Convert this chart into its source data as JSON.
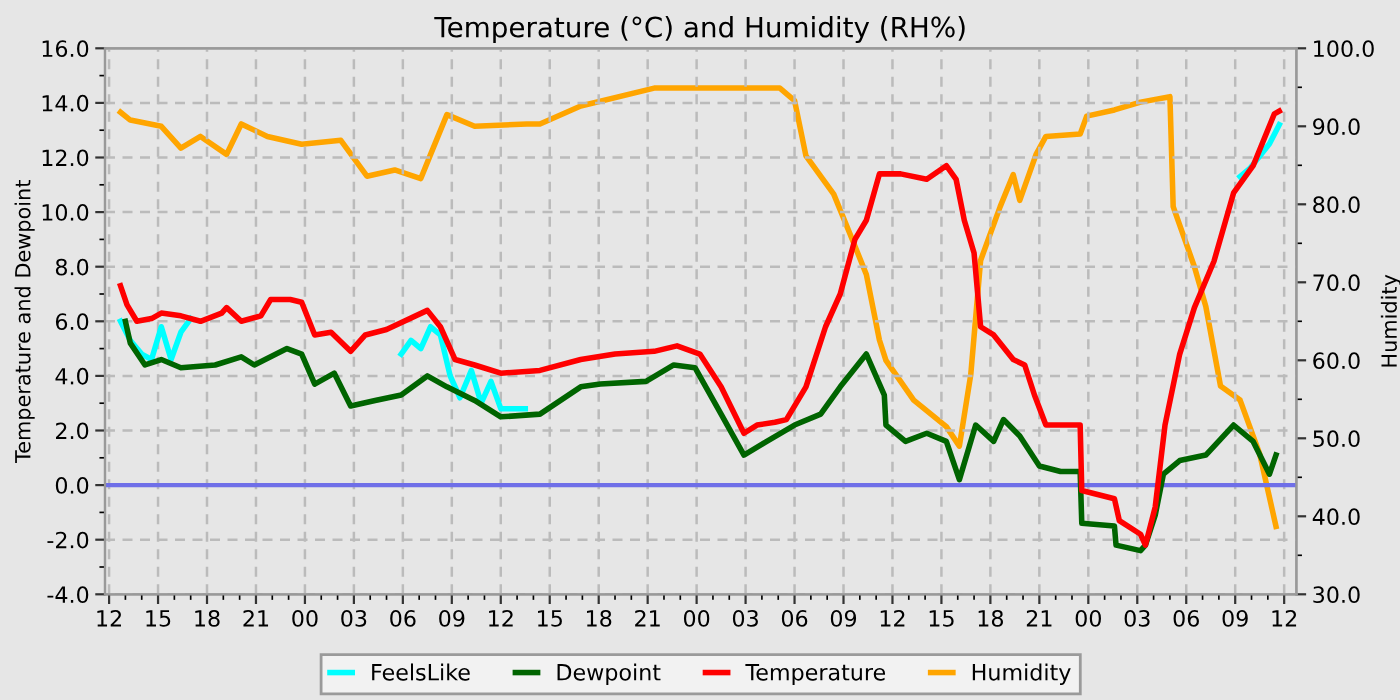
{
  "chart_data": {
    "type": "line",
    "title": "Temperature (°C) and Humidity (RH%)",
    "ylabel": "Temperature and Dewpoint",
    "y2label": "Humidity",
    "xlim": [
      11.75,
      84.75
    ],
    "xticks": [
      {
        "value": 12,
        "label": "12"
      },
      {
        "value": 15,
        "label": "15"
      },
      {
        "value": 18,
        "label": "18"
      },
      {
        "value": 21,
        "label": "21"
      },
      {
        "value": 24,
        "label": "00"
      },
      {
        "value": 27,
        "label": "03"
      },
      {
        "value": 30,
        "label": "06"
      },
      {
        "value": 33,
        "label": "09"
      },
      {
        "value": 36,
        "label": "12"
      },
      {
        "value": 39,
        "label": "15"
      },
      {
        "value": 42,
        "label": "18"
      },
      {
        "value": 45,
        "label": "21"
      },
      {
        "value": 48,
        "label": "00"
      },
      {
        "value": 51,
        "label": "03"
      },
      {
        "value": 54,
        "label": "06"
      },
      {
        "value": 57,
        "label": "09"
      },
      {
        "value": 60,
        "label": "12"
      },
      {
        "value": 63,
        "label": "15"
      },
      {
        "value": 66,
        "label": "18"
      },
      {
        "value": 69,
        "label": "21"
      },
      {
        "value": 72,
        "label": "00"
      },
      {
        "value": 75,
        "label": "03"
      },
      {
        "value": 78,
        "label": "06"
      },
      {
        "value": 81,
        "label": "09"
      },
      {
        "value": 84,
        "label": "12"
      }
    ],
    "ylim": [
      -4,
      16
    ],
    "yticks": [
      {
        "value": -4,
        "label": "-4.0"
      },
      {
        "value": -2,
        "label": "-2.0"
      },
      {
        "value": 0,
        "label": "0.0"
      },
      {
        "value": 2,
        "label": "2.0"
      },
      {
        "value": 4,
        "label": "4.0"
      },
      {
        "value": 6,
        "label": "6.0"
      },
      {
        "value": 8,
        "label": "8.0"
      },
      {
        "value": 10,
        "label": "10.0"
      },
      {
        "value": 12,
        "label": "12.0"
      },
      {
        "value": 14,
        "label": "14.0"
      },
      {
        "value": 16,
        "label": "16.0"
      }
    ],
    "y2lim": [
      30,
      100
    ],
    "y2ticks": [
      {
        "value": 30,
        "label": "30.0"
      },
      {
        "value": 40,
        "label": "40.0"
      },
      {
        "value": 50,
        "label": "50.0"
      },
      {
        "value": 60,
        "label": "60.0"
      },
      {
        "value": 70,
        "label": "70.0"
      },
      {
        "value": 80,
        "label": "80.0"
      },
      {
        "value": 90,
        "label": "90.0"
      },
      {
        "value": 100,
        "label": "100.0"
      }
    ],
    "grid": true,
    "legend": "bottom",
    "line_style": "solid",
    "marker": "none",
    "ref_lines": [
      {
        "axis": "y",
        "value": 0,
        "color": "#6f6fe8"
      }
    ],
    "series": [
      {
        "name": "FeelsLike",
        "color": "#00ffff",
        "x": [
          12.7,
          13.3,
          14.0,
          14.6,
          15.2,
          15.8,
          16.4,
          17.0,
          17.1,
          29.9,
          30.5,
          31.1,
          31.7,
          32.3,
          32.9,
          33.5,
          34.2,
          34.8,
          35.4,
          36.0,
          36.6,
          37.5,
          37.6,
          81.3,
          81.9,
          83.1,
          83.7
        ],
        "values": [
          6.0,
          5.3,
          4.8,
          4.6,
          5.8,
          4.6,
          5.6,
          6.1,
          null,
          4.8,
          5.3,
          5.0,
          5.8,
          5.5,
          4.0,
          3.2,
          4.2,
          3.0,
          3.8,
          2.8,
          2.8,
          2.8,
          null,
          11.3,
          11.6,
          12.5,
          13.2
        ]
      },
      {
        "name": "Dewpoint",
        "color": "#006400",
        "x": [
          13.0,
          13.3,
          14.2,
          15.2,
          16.4,
          18.5,
          20.1,
          20.9,
          22.9,
          23.8,
          24.6,
          25.8,
          26.8,
          28.3,
          29.9,
          31.5,
          32.7,
          34.4,
          36.0,
          38.4,
          40.9,
          42.1,
          44.9,
          46.6,
          47.9,
          49.5,
          50.9,
          52.3,
          54.0,
          55.6,
          56.8,
          58.4,
          59.5,
          59.6,
          60.8,
          62.1,
          63.3,
          64.1,
          65.1,
          66.2,
          66.8,
          67.8,
          69.0,
          70.3,
          71.5,
          71.6,
          73.6,
          73.7,
          75.2,
          75.5,
          76.1,
          76.6,
          77.6,
          79.2,
          80.9,
          82.1,
          83.1,
          83.5
        ],
        "values": [
          6.0,
          5.2,
          4.4,
          4.6,
          4.3,
          4.4,
          4.7,
          4.4,
          5.0,
          4.8,
          3.7,
          4.1,
          2.9,
          3.1,
          3.3,
          4.0,
          3.6,
          3.1,
          2.5,
          2.6,
          3.6,
          3.7,
          3.8,
          4.4,
          4.3,
          2.6,
          1.1,
          1.6,
          2.2,
          2.6,
          3.6,
          4.8,
          3.3,
          2.2,
          1.6,
          1.9,
          1.6,
          0.2,
          2.2,
          1.6,
          2.4,
          1.8,
          0.7,
          0.5,
          0.5,
          -1.4,
          -1.5,
          -2.2,
          -2.4,
          -2.2,
          -1.1,
          0.4,
          0.9,
          1.1,
          2.2,
          1.6,
          0.4,
          1.1
        ]
      },
      {
        "name": "Temperature",
        "color": "#ff0000",
        "x": [
          12.7,
          13.1,
          13.7,
          14.6,
          15.2,
          16.4,
          17.6,
          18.9,
          19.2,
          20.1,
          21.3,
          21.9,
          23.1,
          23.8,
          24.6,
          25.6,
          26.8,
          27.7,
          29.0,
          31.5,
          32.3,
          33.2,
          34.4,
          36.0,
          38.4,
          40.9,
          43.0,
          45.4,
          46.8,
          48.2,
          49.5,
          50.9,
          51.7,
          52.8,
          53.5,
          54.7,
          55.9,
          56.8,
          57.7,
          58.4,
          59.2,
          60.5,
          62.1,
          63.3,
          63.9,
          64.4,
          65.0,
          65.4,
          66.2,
          67.4,
          68.1,
          68.7,
          69.4,
          71.5,
          71.6,
          73.6,
          73.9,
          75.2,
          75.5,
          76.1,
          76.7,
          77.6,
          78.5,
          79.7,
          80.9,
          82.1,
          83.4,
          83.7
        ],
        "values": [
          7.3,
          6.6,
          6.0,
          6.1,
          6.3,
          6.2,
          6.0,
          6.3,
          6.5,
          6.0,
          6.2,
          6.8,
          6.8,
          6.7,
          5.5,
          5.6,
          4.9,
          5.5,
          5.7,
          6.4,
          5.8,
          4.6,
          4.4,
          4.1,
          4.2,
          4.6,
          4.8,
          4.9,
          5.1,
          4.8,
          3.6,
          1.9,
          2.2,
          2.3,
          2.4,
          3.6,
          5.8,
          7.0,
          9.0,
          9.7,
          11.4,
          11.4,
          11.2,
          11.7,
          11.2,
          9.7,
          8.5,
          5.8,
          5.5,
          4.6,
          4.4,
          3.3,
          2.2,
          2.2,
          -0.2,
          -0.5,
          -1.3,
          -1.8,
          -2.2,
          -0.8,
          2.2,
          4.8,
          6.5,
          8.2,
          10.7,
          11.7,
          13.6,
          13.7
        ]
      },
      {
        "name": "Humidity",
        "color": "#ffa500",
        "axis": "y2",
        "x": [
          12.7,
          13.3,
          15.2,
          16.4,
          17.6,
          19.2,
          20.1,
          21.7,
          23.8,
          26.2,
          27.8,
          29.5,
          31.1,
          31.7,
          32.7,
          34.4,
          37.6,
          38.4,
          40.9,
          45.4,
          53.1,
          54.0,
          54.7,
          56.4,
          57.4,
          58.4,
          59.2,
          59.6,
          61.3,
          63.3,
          64.1,
          64.8,
          65.4,
          66.6,
          67.4,
          67.8,
          68.8,
          69.4,
          71.5,
          71.9,
          73.6,
          75.2,
          77.0,
          77.2,
          78.5,
          79.2,
          80.1,
          81.3,
          82.5,
          83.5
        ],
        "values": [
          91.8,
          90.8,
          90.0,
          87.2,
          88.7,
          86.4,
          90.3,
          88.7,
          87.7,
          88.2,
          83.6,
          84.4,
          83.3,
          86.4,
          91.5,
          90.0,
          90.3,
          90.3,
          92.6,
          94.9,
          94.9,
          93.3,
          86.2,
          81.3,
          76.2,
          71.0,
          62.6,
          60.0,
          54.9,
          51.5,
          49.0,
          58.2,
          72.8,
          79.7,
          83.8,
          80.5,
          86.4,
          88.7,
          89.0,
          91.3,
          92.1,
          93.1,
          93.8,
          79.7,
          72.0,
          66.9,
          56.7,
          54.9,
          48.0,
          38.7
        ]
      }
    ]
  }
}
